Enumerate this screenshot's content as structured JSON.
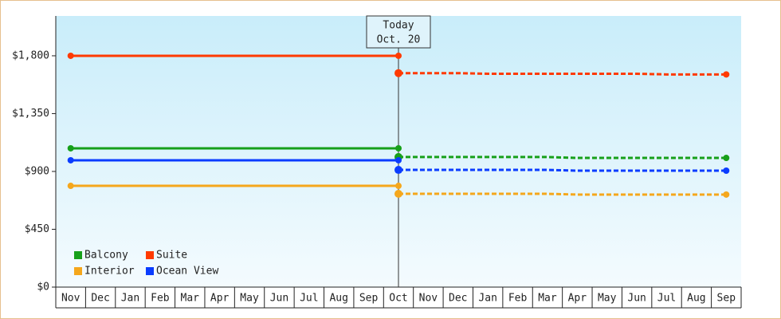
{
  "chart_data": {
    "type": "line",
    "categories": [
      "Nov",
      "Dec",
      "Jan",
      "Feb",
      "Mar",
      "Apr",
      "May",
      "Jun",
      "Jul",
      "Aug",
      "Sep",
      "Oct",
      "Nov",
      "Dec",
      "Jan",
      "Feb",
      "Mar",
      "Apr",
      "May",
      "Jun",
      "Jul",
      "Aug",
      "Sep"
    ],
    "ylim": [
      0,
      2110
    ],
    "yticks": [
      {
        "value": 0,
        "label": "$0"
      },
      {
        "value": 450,
        "label": "$450"
      },
      {
        "value": 900,
        "label": "$900"
      },
      {
        "value": 1350,
        "label": "$1,350"
      },
      {
        "value": 1800,
        "label": "$1,800"
      }
    ],
    "annotation": {
      "category_index": 11,
      "lines": [
        "Today",
        "Oct. 20"
      ]
    },
    "series": [
      {
        "name": "Balcony",
        "color": "#17a01a",
        "values": [
          1080,
          1080,
          1080,
          1080,
          1080,
          1080,
          1080,
          1080,
          1080,
          1080,
          1080,
          1080,
          null,
          null,
          null,
          null,
          null,
          null,
          null,
          null,
          null,
          null,
          null
        ],
        "forecast": [
          null,
          null,
          null,
          null,
          null,
          null,
          null,
          null,
          null,
          null,
          null,
          1012,
          1012,
          1012,
          1012,
          1012,
          1012,
          1005,
          1005,
          1005,
          1005,
          1005,
          1005
        ]
      },
      {
        "name": "Suite",
        "color": "#ff3a00",
        "values": [
          1800,
          1800,
          1800,
          1800,
          1800,
          1800,
          1800,
          1800,
          1800,
          1800,
          1800,
          1800,
          null,
          null,
          null,
          null,
          null,
          null,
          null,
          null,
          null,
          null,
          null
        ],
        "forecast": [
          null,
          null,
          null,
          null,
          null,
          null,
          null,
          null,
          null,
          null,
          null,
          1665,
          1665,
          1665,
          1660,
          1660,
          1660,
          1660,
          1660,
          1660,
          1655,
          1655,
          1655
        ]
      },
      {
        "name": "Interior",
        "color": "#f5a71c",
        "values": [
          788,
          788,
          788,
          788,
          788,
          788,
          788,
          788,
          788,
          788,
          788,
          788,
          null,
          null,
          null,
          null,
          null,
          null,
          null,
          null,
          null,
          null,
          null
        ],
        "forecast": [
          null,
          null,
          null,
          null,
          null,
          null,
          null,
          null,
          null,
          null,
          null,
          726,
          726,
          726,
          726,
          726,
          726,
          720,
          720,
          720,
          720,
          720,
          720
        ]
      },
      {
        "name": "Ocean View",
        "color": "#0a3cff",
        "values": [
          987,
          987,
          987,
          987,
          987,
          987,
          987,
          987,
          987,
          987,
          987,
          987,
          null,
          null,
          null,
          null,
          null,
          null,
          null,
          null,
          null,
          null,
          null
        ],
        "forecast": [
          null,
          null,
          null,
          null,
          null,
          null,
          null,
          null,
          null,
          null,
          null,
          912,
          912,
          912,
          912,
          912,
          912,
          906,
          906,
          906,
          906,
          906,
          906
        ]
      }
    ]
  }
}
